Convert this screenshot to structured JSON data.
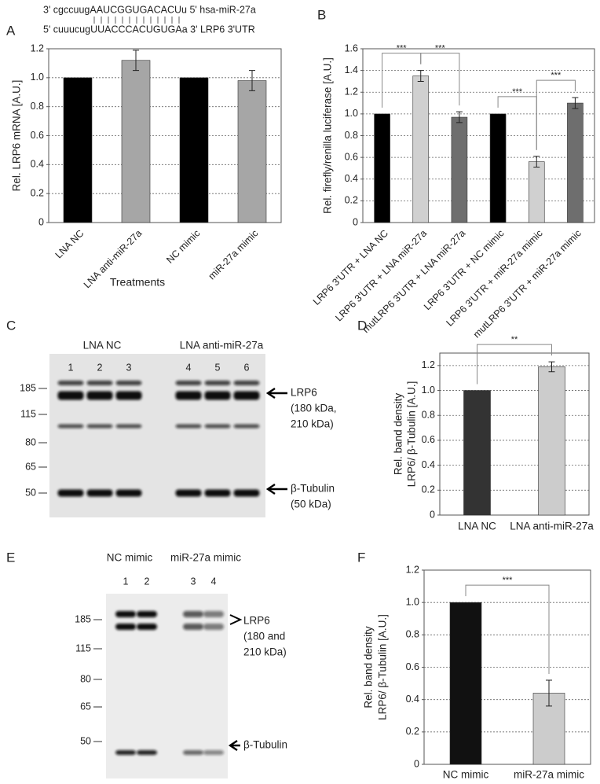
{
  "panel_labels": [
    "A",
    "B",
    "C",
    "D",
    "E",
    "F"
  ],
  "sequence": [
    "3' cgccuugAAUCGGUGACACUu 5' hsa-miR-27a",
    "5' cuuucugUUACCCACUGUGAa 3' LRP6 3'UTR"
  ],
  "chart_data": [
    {
      "type": "bar",
      "xlabel": "Treatments",
      "ylabel": "Rel. LRP6 mRNA [A.U.]",
      "categories": [
        "LNA NC",
        "LNA anti-miR-27a",
        "NC mimic",
        "miR-27a mimic"
      ],
      "values": [
        1.0,
        1.12,
        1.0,
        0.98
      ],
      "errors": [
        null,
        0.07,
        null,
        0.07
      ],
      "colors": [
        "#000000",
        "#a6a6a6",
        "#000000",
        "#a6a6a6"
      ],
      "ylim": [
        0,
        1.2
      ],
      "yticks": [
        0,
        0.2,
        0.4,
        0.6,
        0.8,
        {
          "value": 1,
          "label": "1.0"
        },
        1.2
      ],
      "grid": true
    },
    {
      "type": "bar",
      "ylabel": "Rel. firefly/renilla luciferase [A.U.]",
      "categories": [
        "LRP6 3'UTR + LNA NC",
        "LRP6 3'UTR + LNA miR-27a",
        "mutLRP6 3'UTR + LNA miR-27a",
        "LRP6 3'UTR + NC mimic",
        "LRP6 3'UTR + miR-27a mimic",
        "mutLRP6 3'UTR + miR-27a mimic"
      ],
      "values": [
        1.0,
        1.35,
        0.97,
        1.0,
        0.56,
        1.1
      ],
      "errors": [
        null,
        0.05,
        0.05,
        null,
        0.05,
        0.05
      ],
      "colors": [
        "#000000",
        "#d0d0d0",
        "#6e6e6e",
        "#000000",
        "#d0d0d0",
        "#6e6e6e"
      ],
      "ylim": [
        0,
        1.6
      ],
      "yticks": [
        0,
        0.2,
        0.4,
        0.6,
        0.8,
        {
          "value": 1,
          "label": "1.0"
        },
        1.2,
        1.4,
        1.6
      ],
      "grid": true,
      "comparisons": [
        {
          "label": "***",
          "between": [
            0,
            1
          ]
        },
        {
          "label": "***",
          "between": [
            1,
            2
          ]
        },
        {
          "label": "***",
          "between": [
            3,
            4
          ]
        },
        {
          "label": "***",
          "between": [
            4,
            5
          ]
        }
      ]
    },
    {
      "type": "bar",
      "ylabel": [
        "Rel. band density",
        "LRP6/ β-Tubulin [A.U.]"
      ],
      "categories": [
        "LNA NC",
        "LNA anti-miR-27a"
      ],
      "values": [
        1.0,
        1.19
      ],
      "errors": [
        null,
        0.04
      ],
      "colors": [
        "#333333",
        "#cccccc"
      ],
      "ylim": [
        0,
        1.3
      ],
      "yticks": [
        0,
        0.2,
        0.4,
        0.6,
        0.8,
        {
          "value": 1,
          "label": "1.0"
        },
        1.2
      ],
      "grid": true,
      "comparisons": [
        {
          "label": "**",
          "between": [
            0,
            1
          ]
        }
      ]
    },
    {
      "type": "bar",
      "ylabel": [
        "Rel. band density",
        "LRP6/ β-Tubulin [A.U.]"
      ],
      "categories": [
        "NC mimic",
        "miR-27a mimic"
      ],
      "values": [
        1.0,
        0.44
      ],
      "errors": [
        null,
        0.08
      ],
      "colors": [
        "#111111",
        "#cccccc"
      ],
      "ylim": [
        0,
        1.2
      ],
      "yticks": [
        0,
        0.2,
        0.4,
        0.6,
        0.8,
        {
          "value": 1,
          "label": "1.0"
        },
        1.2
      ],
      "grid": true,
      "comparisons": [
        {
          "label": "***",
          "between": [
            0,
            1
          ]
        }
      ]
    }
  ],
  "blots": [
    {
      "groups": [
        "LNA NC",
        "LNA anti-miR-27a"
      ],
      "lanes": [
        "1",
        "2",
        "3",
        "4",
        "5",
        "6"
      ],
      "markers": [
        "185",
        "115",
        "80",
        "65",
        "50"
      ],
      "annotations": [
        [
          "LRP6",
          "(180 kDa,",
          "210 kDa)"
        ],
        [
          "β-Tubulin",
          "(50 kDa)"
        ]
      ]
    },
    {
      "groups": [
        "NC mimic",
        "miR-27a mimic"
      ],
      "lanes": [
        "1",
        "2",
        "3",
        "4"
      ],
      "markers": [
        "185",
        "115",
        "80",
        "65",
        "50"
      ],
      "annotations": [
        [
          "LRP6",
          "(180 and",
          "210 kDa)"
        ],
        [
          "β-Tubulin"
        ]
      ]
    }
  ]
}
